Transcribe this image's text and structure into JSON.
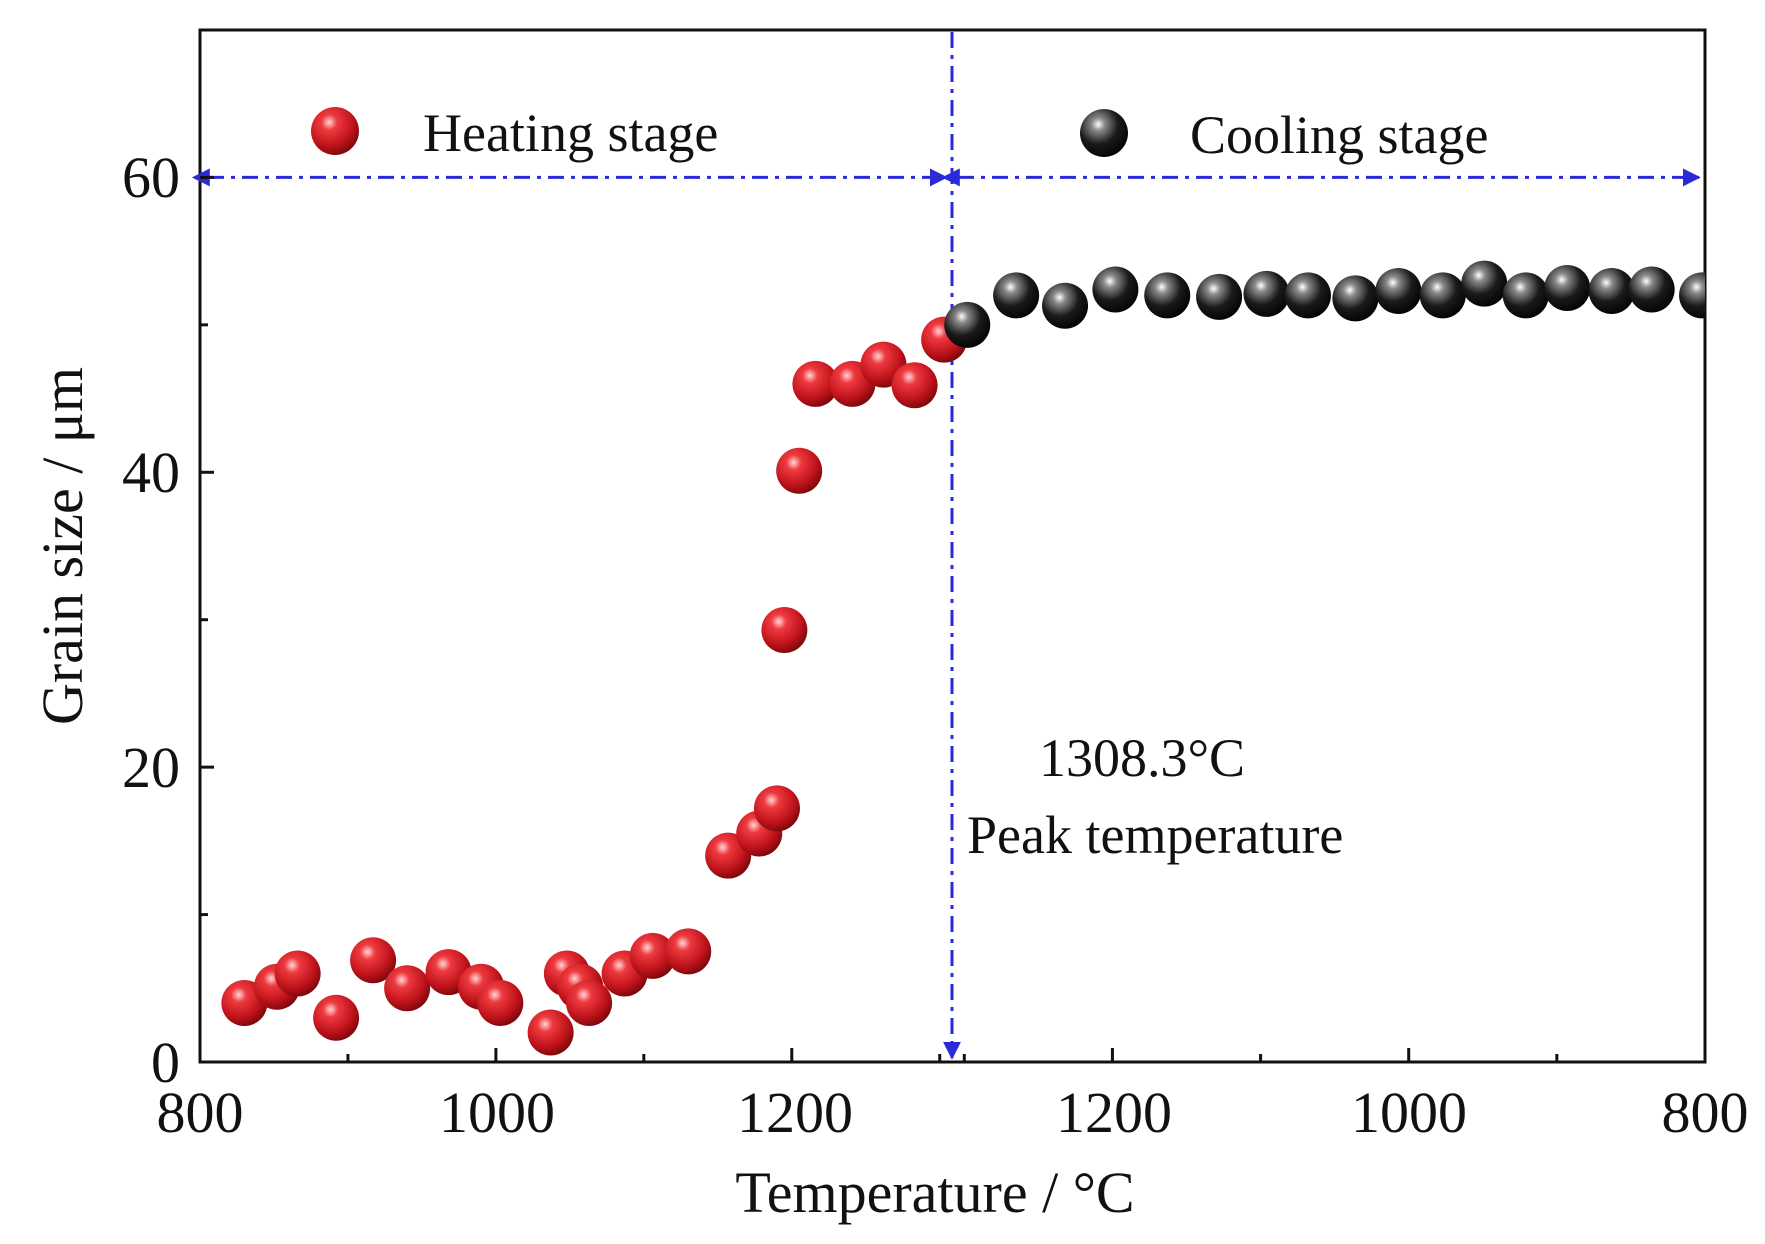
{
  "chart_data": {
    "type": "scatter",
    "title": "",
    "xlabel": "Temperature / °C",
    "ylabel": "Grain size / μm",
    "ylim": [
      0,
      70
    ],
    "yticks": [
      0,
      20,
      40,
      60
    ],
    "heating_xlim": [
      800,
      1308.3
    ],
    "cooling_xlim": [
      1308.3,
      800
    ],
    "x_tick_labels": [
      "800",
      "1000",
      "1200",
      "1200",
      "1000",
      "800"
    ],
    "series": [
      {
        "name": "Heating stage",
        "color": "#c8161d",
        "points": [
          {
            "x": 830,
            "y": 4.0
          },
          {
            "x": 852,
            "y": 5.1
          },
          {
            "x": 866,
            "y": 6.0
          },
          {
            "x": 892,
            "y": 3.0
          },
          {
            "x": 917,
            "y": 6.9
          },
          {
            "x": 940,
            "y": 5.0
          },
          {
            "x": 968,
            "y": 6.1
          },
          {
            "x": 990,
            "y": 5.1
          },
          {
            "x": 1003,
            "y": 4.0
          },
          {
            "x": 1037,
            "y": 2.0
          },
          {
            "x": 1048,
            "y": 6.0
          },
          {
            "x": 1057,
            "y": 5.1
          },
          {
            "x": 1063,
            "y": 4.0
          },
          {
            "x": 1087,
            "y": 6.0
          },
          {
            "x": 1106,
            "y": 7.2
          },
          {
            "x": 1130,
            "y": 7.5
          },
          {
            "x": 1157,
            "y": 14.0
          },
          {
            "x": 1178,
            "y": 15.5
          },
          {
            "x": 1190,
            "y": 17.2
          },
          {
            "x": 1195,
            "y": 29.3
          },
          {
            "x": 1205,
            "y": 40.1
          },
          {
            "x": 1216,
            "y": 46.0
          },
          {
            "x": 1241,
            "y": 46.0
          },
          {
            "x": 1262,
            "y": 47.3
          },
          {
            "x": 1283,
            "y": 45.9
          },
          {
            "x": 1303,
            "y": 49.0
          }
        ]
      },
      {
        "name": "Cooling stage",
        "color": "#111111",
        "points": [
          {
            "x": 1298,
            "y": 50.0
          },
          {
            "x": 1265,
            "y": 52.0
          },
          {
            "x": 1232,
            "y": 51.3
          },
          {
            "x": 1198,
            "y": 52.4
          },
          {
            "x": 1163,
            "y": 52.0
          },
          {
            "x": 1128,
            "y": 51.9
          },
          {
            "x": 1096,
            "y": 52.1
          },
          {
            "x": 1068,
            "y": 52.0
          },
          {
            "x": 1036,
            "y": 51.8
          },
          {
            "x": 1007,
            "y": 52.3
          },
          {
            "x": 977,
            "y": 52.0
          },
          {
            "x": 949,
            "y": 52.8
          },
          {
            "x": 921,
            "y": 52.0
          },
          {
            "x": 893,
            "y": 52.5
          },
          {
            "x": 863,
            "y": 52.3
          },
          {
            "x": 836,
            "y": 52.4
          },
          {
            "x": 802,
            "y": 52.0
          }
        ]
      }
    ],
    "reference_lines": [
      {
        "orientation": "horizontal",
        "y": 60,
        "style": "dash-dot",
        "color": "#2a2ad8"
      },
      {
        "orientation": "vertical",
        "x": 1308.3,
        "style": "dash-dot",
        "color": "#2a2ad8"
      }
    ],
    "annotations": {
      "peak_value": "1308.3°C",
      "peak_label": "Peak temperature"
    },
    "legend": [
      "Heating stage",
      "Cooling stage"
    ]
  }
}
